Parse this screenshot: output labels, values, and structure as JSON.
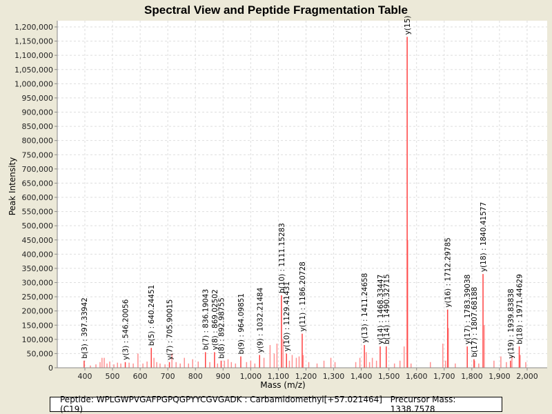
{
  "chart_data": {
    "type": "bar",
    "title": "Spectral View and Peptide Fragmentation Table",
    "xlabel": "Mass (m/z)",
    "ylabel": "Peak Intensity",
    "xlim": [
      300,
      2075
    ],
    "ylim": [
      0,
      1225000
    ],
    "xticks": [
      400,
      500,
      600,
      700,
      800,
      900,
      1000,
      1100,
      1200,
      1300,
      1400,
      1500,
      1600,
      1700,
      1800,
      1900,
      2000
    ],
    "xtick_labels": [
      "400",
      "500",
      "600",
      "700",
      "800",
      "900",
      "1,000",
      "1,100",
      "1,200",
      "1,300",
      "1,400",
      "1,500",
      "1,600",
      "1,700",
      "1,800",
      "1,900",
      "2,000"
    ],
    "yticks": [
      0,
      50000,
      100000,
      150000,
      200000,
      250000,
      300000,
      350000,
      400000,
      450000,
      500000,
      550000,
      600000,
      650000,
      700000,
      750000,
      800000,
      850000,
      900000,
      950000,
      1000000,
      1050000,
      1100000,
      1150000,
      1200000
    ],
    "ytick_labels": [
      "0",
      "50,000",
      "100,000",
      "150,000",
      "200,000",
      "250,000",
      "300,000",
      "350,000",
      "400,000",
      "450,000",
      "500,000",
      "550,000",
      "600,000",
      "650,000",
      "700,000",
      "750,000",
      "800,000",
      "850,000",
      "900,000",
      "950,000",
      "1,000,000",
      "1,050,000",
      "1,100,000",
      "1,150,000",
      "1,200,000"
    ],
    "grid": true,
    "peak_color": "#FF4040",
    "annotated_peaks": [
      {
        "mz": 397.33942,
        "intensity": 25000,
        "label": "b(3) : 397.33942"
      },
      {
        "mz": 546.20056,
        "intensity": 20000,
        "label": "y(3) : 546.20056"
      },
      {
        "mz": 640.24451,
        "intensity": 70000,
        "label": "b(5) : 640.24451"
      },
      {
        "mz": 705.90015,
        "intensity": 20000,
        "label": "y(7) : 705.90015"
      },
      {
        "mz": 836.19043,
        "intensity": 55000,
        "label": "b(7) : 836.19043"
      },
      {
        "mz": 869.02502,
        "intensity": 55000,
        "label": "y(8) : 869.02502"
      },
      {
        "mz": 892.98755,
        "intensity": 25000,
        "label": "b(8) : 892.98755"
      },
      {
        "mz": 964.09851,
        "intensity": 40000,
        "label": "b(9) : 964.09851"
      },
      {
        "mz": 1032.21484,
        "intensity": 45000,
        "label": "y(9) : 1032.21484"
      },
      {
        "mz": 1111.15283,
        "intensity": 255000,
        "label": "b(10) : 1111.15283"
      },
      {
        "mz": 1129.41431,
        "intensity": 50000,
        "label": "y(10) : 1129.41431"
      },
      {
        "mz": 1186.20728,
        "intensity": 120000,
        "label": "y(11) : 1186.20728"
      },
      {
        "mz": 1411.24658,
        "intensity": 80000,
        "label": "y(13) : 1411.24658"
      },
      {
        "mz": 1468.33447,
        "intensity": 75000,
        "label": "y(14) : 1468.33447"
      },
      {
        "mz": 1490.32715,
        "intensity": 75000,
        "label": "b(14) : 1490.32715"
      },
      {
        "mz": 1566.0,
        "intensity": 1165000,
        "label": "y(15)"
      },
      {
        "mz": 1712.29785,
        "intensity": 205000,
        "label": "y(16) : 1712.29785"
      },
      {
        "mz": 1783.39038,
        "intensity": 75000,
        "label": "y(17) : 1783.39038"
      },
      {
        "mz": 1807.68188,
        "intensity": 30000,
        "label": "b(17) : 1807.68188"
      },
      {
        "mz": 1840.41577,
        "intensity": 330000,
        "label": "y(18) : 1840.41577"
      },
      {
        "mz": 1939.83838,
        "intensity": 25000,
        "label": "y(19) : 1939.83838"
      },
      {
        "mz": 1971.44629,
        "intensity": 75000,
        "label": "b(18) : 1971.44629"
      }
    ],
    "other_peaks": [
      [
        420,
        8000
      ],
      [
        440,
        12000
      ],
      [
        455,
        20000
      ],
      [
        462,
        35000
      ],
      [
        470,
        35000
      ],
      [
        480,
        15000
      ],
      [
        490,
        22000
      ],
      [
        505,
        12000
      ],
      [
        518,
        18000
      ],
      [
        530,
        15000
      ],
      [
        560,
        18000
      ],
      [
        575,
        15000
      ],
      [
        592,
        50000
      ],
      [
        610,
        15000
      ],
      [
        625,
        22000
      ],
      [
        650,
        35000
      ],
      [
        660,
        20000
      ],
      [
        672,
        15000
      ],
      [
        690,
        12000
      ],
      [
        715,
        50000
      ],
      [
        730,
        20000
      ],
      [
        745,
        15000
      ],
      [
        760,
        35000
      ],
      [
        775,
        15000
      ],
      [
        790,
        30000
      ],
      [
        810,
        22000
      ],
      [
        852,
        20000
      ],
      [
        880,
        15000
      ],
      [
        905,
        25000
      ],
      [
        918,
        30000
      ],
      [
        930,
        20000
      ],
      [
        945,
        15000
      ],
      [
        985,
        20000
      ],
      [
        1000,
        25000
      ],
      [
        1015,
        15000
      ],
      [
        1048,
        35000
      ],
      [
        1070,
        80000
      ],
      [
        1085,
        50000
      ],
      [
        1095,
        85000
      ],
      [
        1117,
        100000
      ],
      [
        1140,
        25000
      ],
      [
        1150,
        45000
      ],
      [
        1165,
        35000
      ],
      [
        1175,
        40000
      ],
      [
        1190,
        45000
      ],
      [
        1210,
        20000
      ],
      [
        1240,
        15000
      ],
      [
        1265,
        25000
      ],
      [
        1290,
        35000
      ],
      [
        1305,
        20000
      ],
      [
        1380,
        20000
      ],
      [
        1395,
        35000
      ],
      [
        1418,
        55000
      ],
      [
        1430,
        20000
      ],
      [
        1440,
        35000
      ],
      [
        1455,
        25000
      ],
      [
        1520,
        15000
      ],
      [
        1540,
        25000
      ],
      [
        1555,
        75000
      ],
      [
        1568,
        450000
      ],
      [
        1580,
        15000
      ],
      [
        1650,
        20000
      ],
      [
        1695,
        85000
      ],
      [
        1705,
        25000
      ],
      [
        1715,
        140000
      ],
      [
        1740,
        15000
      ],
      [
        1810,
        25000
      ],
      [
        1825,
        15000
      ],
      [
        1845,
        150000
      ],
      [
        1880,
        25000
      ],
      [
        1905,
        40000
      ],
      [
        1925,
        20000
      ],
      [
        1945,
        40000
      ],
      [
        1975,
        45000
      ],
      [
        1995,
        20000
      ]
    ]
  },
  "footer": {
    "peptide": "Peptide: WPLGWPVGAFPGPQGPYYCGVGADK : Carbamidomethyl[+57.021464] (C19)",
    "precursor": "Precursor Mass: 1338.7578"
  }
}
